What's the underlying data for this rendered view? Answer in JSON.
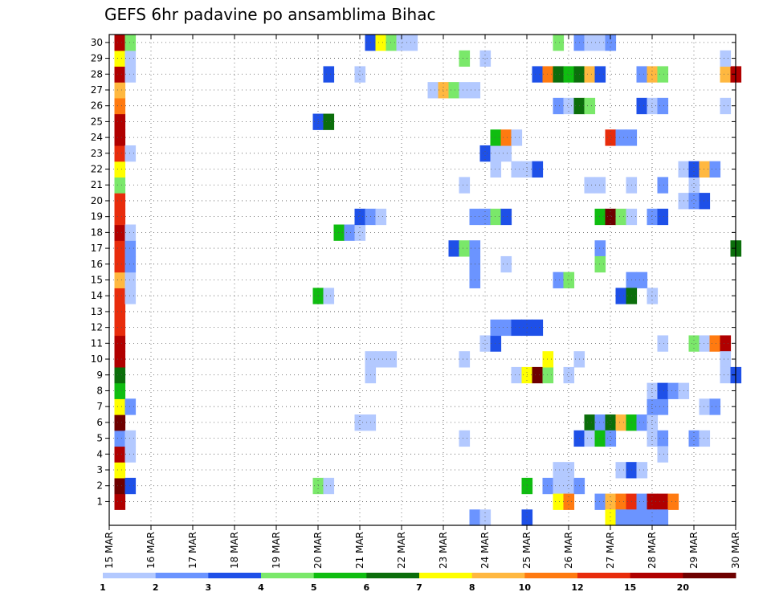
{
  "chart_data": {
    "type": "heatmap",
    "title": "GEFS 6hr padavine po ansamblima Bihac",
    "xlabel": "",
    "ylabel": "",
    "x_tick_labels": [
      "15 MAR",
      "16 MAR",
      "17 MAR",
      "18 MAR",
      "19 MAR",
      "20 MAR",
      "21 MAR",
      "22 MAR",
      "23 MAR",
      "24 MAR",
      "25 MAR",
      "26 MAR",
      "27 MAR",
      "28 MAR",
      "29 MAR",
      "30 MAR"
    ],
    "y_tick_labels": [
      "1",
      "2",
      "3",
      "4",
      "5",
      "6",
      "7",
      "8",
      "9",
      "10",
      "11",
      "12",
      "13",
      "14",
      "15",
      "16",
      "17",
      "18",
      "19",
      "20",
      "21",
      "22",
      "23",
      "24",
      "25",
      "26",
      "27",
      "28",
      "29",
      "30"
    ],
    "x_range_days": [
      15,
      30
    ],
    "y_range": [
      0,
      30
    ],
    "grid": "dotted",
    "colorbar": {
      "labels": [
        "1",
        "2",
        "3",
        "4",
        "5",
        "6",
        "7",
        "8",
        "10",
        "12",
        "15",
        "20"
      ],
      "colors": [
        "#b3c9ff",
        "#6b94ff",
        "#1e50e8",
        "#7ae86a",
        "#0fbd10",
        "#0b6e0b",
        "#ffff00",
        "#ffb840",
        "#ff7a10",
        "#e82c0c",
        "#b00000",
        "#6e0000"
      ]
    },
    "cells": [
      [
        15.25,
        1,
        10
      ],
      [
        15.25,
        2,
        11
      ],
      [
        15.25,
        3,
        6
      ],
      [
        15.25,
        4,
        10
      ],
      [
        15.25,
        5,
        1
      ],
      [
        15.25,
        6,
        11
      ],
      [
        15.25,
        7,
        6
      ],
      [
        15.25,
        8,
        4
      ],
      [
        15.25,
        9,
        5
      ],
      [
        15.25,
        10,
        10
      ],
      [
        15.25,
        11,
        10
      ],
      [
        15.25,
        12,
        9
      ],
      [
        15.25,
        13,
        9
      ],
      [
        15.25,
        14,
        9
      ],
      [
        15.25,
        15,
        7
      ],
      [
        15.25,
        16,
        9
      ],
      [
        15.25,
        17,
        9
      ],
      [
        15.25,
        18,
        10
      ],
      [
        15.25,
        19,
        9
      ],
      [
        15.25,
        20,
        9
      ],
      [
        15.25,
        21,
        3
      ],
      [
        15.25,
        22,
        6
      ],
      [
        15.25,
        23,
        9
      ],
      [
        15.25,
        24,
        10
      ],
      [
        15.25,
        25,
        10
      ],
      [
        15.25,
        26,
        8
      ],
      [
        15.25,
        27,
        7
      ],
      [
        15.25,
        28,
        10
      ],
      [
        15.25,
        29,
        6
      ],
      [
        15.25,
        30,
        10
      ],
      [
        15.5,
        2,
        2
      ],
      [
        15.5,
        4,
        0
      ],
      [
        15.5,
        5,
        0
      ],
      [
        15.5,
        7,
        1
      ],
      [
        15.5,
        14,
        0
      ],
      [
        15.5,
        15,
        0
      ],
      [
        15.5,
        16,
        1
      ],
      [
        15.5,
        17,
        1
      ],
      [
        15.5,
        18,
        0
      ],
      [
        15.5,
        23,
        0
      ],
      [
        15.5,
        28,
        0
      ],
      [
        15.5,
        29,
        0
      ],
      [
        15.5,
        30,
        3
      ],
      [
        20.0,
        2,
        3
      ],
      [
        20.25,
        2,
        0
      ],
      [
        20.0,
        14,
        4
      ],
      [
        20.25,
        14,
        0
      ],
      [
        20.0,
        25,
        2
      ],
      [
        20.25,
        25,
        5
      ],
      [
        20.25,
        28,
        2
      ],
      [
        20.5,
        18,
        4
      ],
      [
        20.75,
        18,
        1
      ],
      [
        21.0,
        18,
        0
      ],
      [
        21.0,
        28,
        0
      ],
      [
        21.0,
        6,
        0
      ],
      [
        21.25,
        6,
        0
      ],
      [
        21.0,
        19,
        2
      ],
      [
        21.25,
        19,
        1
      ],
      [
        21.5,
        19,
        0
      ],
      [
        21.25,
        30,
        2
      ],
      [
        21.5,
        30,
        6
      ],
      [
        21.75,
        30,
        3
      ],
      [
        22.0,
        30,
        0
      ],
      [
        22.25,
        30,
        0
      ],
      [
        21.25,
        10,
        0
      ],
      [
        21.25,
        9,
        0
      ],
      [
        21.5,
        10,
        0
      ],
      [
        21.75,
        10,
        0
      ],
      [
        22.75,
        27,
        0
      ],
      [
        23.0,
        27,
        7
      ],
      [
        23.25,
        27,
        3
      ],
      [
        23.5,
        27,
        0
      ],
      [
        23.75,
        27,
        0
      ],
      [
        23.25,
        17,
        2
      ],
      [
        23.5,
        17,
        3
      ],
      [
        23.75,
        17,
        1
      ],
      [
        23.75,
        16,
        1
      ],
      [
        23.75,
        15,
        1
      ],
      [
        23.5,
        29,
        3
      ],
      [
        24.0,
        29,
        0
      ],
      [
        23.5,
        21,
        0
      ],
      [
        23.5,
        10,
        0
      ],
      [
        23.5,
        5,
        0
      ],
      [
        23.75,
        19,
        1
      ],
      [
        24.0,
        19,
        1
      ],
      [
        24.25,
        19,
        3
      ],
      [
        24.5,
        19,
        2
      ],
      [
        24.0,
        23,
        2
      ],
      [
        24.25,
        23,
        0
      ],
      [
        24.5,
        23,
        0
      ],
      [
        24.25,
        22,
        0
      ],
      [
        24.25,
        24,
        4
      ],
      [
        24.5,
        24,
        8
      ],
      [
        24.75,
        24,
        0
      ],
      [
        24.5,
        16,
        0
      ],
      [
        24.0,
        11,
        0
      ],
      [
        24.25,
        11,
        2
      ],
      [
        24.25,
        12,
        1
      ],
      [
        24.5,
        12,
        1
      ],
      [
        24.75,
        12,
        2
      ],
      [
        25.0,
        12,
        2
      ],
      [
        25.25,
        12,
        2
      ],
      [
        24.75,
        22,
        0
      ],
      [
        25.0,
        22,
        0
      ],
      [
        25.25,
        22,
        2
      ],
      [
        24.75,
        9,
        0
      ],
      [
        25.0,
        9,
        6
      ],
      [
        25.25,
        9,
        11
      ],
      [
        25.5,
        9,
        3
      ],
      [
        25.5,
        10,
        6
      ],
      [
        25.0,
        2,
        4
      ],
      [
        25.5,
        2,
        1
      ],
      [
        25.75,
        2,
        0
      ],
      [
        26.0,
        2,
        0
      ],
      [
        26.25,
        2,
        1
      ],
      [
        25.75,
        3,
        0
      ],
      [
        26.0,
        3,
        0
      ],
      [
        25.75,
        1,
        6
      ],
      [
        26.0,
        1,
        8
      ],
      [
        26.75,
        1,
        1
      ],
      [
        27.0,
        1,
        7
      ],
      [
        27.25,
        1,
        8
      ],
      [
        27.5,
        1,
        9
      ],
      [
        27.75,
        1,
        1
      ],
      [
        28.0,
        1,
        10
      ],
      [
        28.25,
        1,
        10
      ],
      [
        28.5,
        1,
        8
      ],
      [
        27.0,
        0,
        6
      ],
      [
        27.25,
        0,
        1
      ],
      [
        27.5,
        0,
        1
      ],
      [
        27.75,
        0,
        1
      ],
      [
        28.0,
        0,
        1
      ],
      [
        28.25,
        0,
        1
      ],
      [
        25.25,
        28,
        2
      ],
      [
        25.5,
        28,
        8
      ],
      [
        25.75,
        28,
        5
      ],
      [
        26.0,
        28,
        4
      ],
      [
        26.25,
        28,
        5
      ],
      [
        26.5,
        28,
        7
      ],
      [
        26.75,
        28,
        2
      ],
      [
        27.75,
        28,
        1
      ],
      [
        28.0,
        28,
        7
      ],
      [
        28.25,
        28,
        3
      ],
      [
        29.75,
        28,
        7
      ],
      [
        30.0,
        28,
        10
      ],
      [
        25.75,
        30,
        3
      ],
      [
        26.25,
        30,
        1
      ],
      [
        26.5,
        30,
        0
      ],
      [
        26.75,
        30,
        0
      ],
      [
        27.0,
        30,
        1
      ],
      [
        25.75,
        26,
        1
      ],
      [
        26.0,
        26,
        0
      ],
      [
        26.25,
        26,
        5
      ],
      [
        26.5,
        26,
        3
      ],
      [
        27.75,
        26,
        2
      ],
      [
        28.0,
        26,
        0
      ],
      [
        28.25,
        26,
        1
      ],
      [
        29.75,
        26,
        0
      ],
      [
        26.5,
        21,
        0
      ],
      [
        26.75,
        21,
        0
      ],
      [
        27.5,
        21,
        0
      ],
      [
        28.25,
        21,
        1
      ],
      [
        29.0,
        21,
        0
      ],
      [
        26.75,
        19,
        4
      ],
      [
        27.0,
        19,
        11
      ],
      [
        27.25,
        19,
        3
      ],
      [
        27.5,
        19,
        0
      ],
      [
        28.0,
        19,
        1
      ],
      [
        28.25,
        19,
        2
      ],
      [
        27.0,
        24,
        9
      ],
      [
        27.25,
        24,
        1
      ],
      [
        27.5,
        24,
        1
      ],
      [
        26.75,
        17,
        1
      ],
      [
        26.75,
        16,
        3
      ],
      [
        25.75,
        15,
        1
      ],
      [
        26.0,
        15,
        3
      ],
      [
        27.5,
        15,
        1
      ],
      [
        27.75,
        15,
        1
      ],
      [
        27.25,
        14,
        2
      ],
      [
        27.5,
        14,
        5
      ],
      [
        28.0,
        14,
        0
      ],
      [
        26.25,
        10,
        0
      ],
      [
        26.0,
        9,
        0
      ],
      [
        26.5,
        6,
        5
      ],
      [
        26.75,
        6,
        1
      ],
      [
        27.0,
        6,
        5
      ],
      [
        27.25,
        6,
        7
      ],
      [
        27.5,
        6,
        4
      ],
      [
        27.75,
        6,
        1
      ],
      [
        28.0,
        6,
        0
      ],
      [
        26.25,
        5,
        2
      ],
      [
        26.5,
        5,
        0
      ],
      [
        26.75,
        5,
        4
      ],
      [
        27.0,
        5,
        1
      ],
      [
        28.0,
        5,
        0
      ],
      [
        28.25,
        5,
        1
      ],
      [
        29.0,
        5,
        1
      ],
      [
        29.25,
        5,
        0
      ],
      [
        28.0,
        7,
        1
      ],
      [
        28.25,
        7,
        1
      ],
      [
        28.0,
        8,
        0
      ],
      [
        28.25,
        8,
        2
      ],
      [
        28.5,
        8,
        1
      ],
      [
        28.75,
        8,
        0
      ],
      [
        28.25,
        4,
        0
      ],
      [
        27.25,
        3,
        0
      ],
      [
        27.5,
        3,
        2
      ],
      [
        27.75,
        3,
        0
      ],
      [
        28.25,
        11,
        0
      ],
      [
        29.0,
        11,
        3
      ],
      [
        29.25,
        11,
        0
      ],
      [
        29.5,
        11,
        8
      ],
      [
        29.75,
        11,
        10
      ],
      [
        29.25,
        7,
        0
      ],
      [
        29.5,
        7,
        1
      ],
      [
        29.75,
        10,
        0
      ],
      [
        29.75,
        9,
        0
      ],
      [
        30.0,
        9,
        2
      ],
      [
        28.75,
        22,
        0
      ],
      [
        29.0,
        22,
        2
      ],
      [
        29.25,
        22,
        7
      ],
      [
        29.5,
        22,
        1
      ],
      [
        28.75,
        20,
        0
      ],
      [
        29.0,
        20,
        1
      ],
      [
        29.25,
        20,
        2
      ],
      [
        29.75,
        29,
        0
      ],
      [
        30.0,
        17,
        5
      ],
      [
        23.75,
        0,
        1
      ],
      [
        24.0,
        0,
        0
      ],
      [
        25.0,
        0,
        2
      ]
    ]
  }
}
